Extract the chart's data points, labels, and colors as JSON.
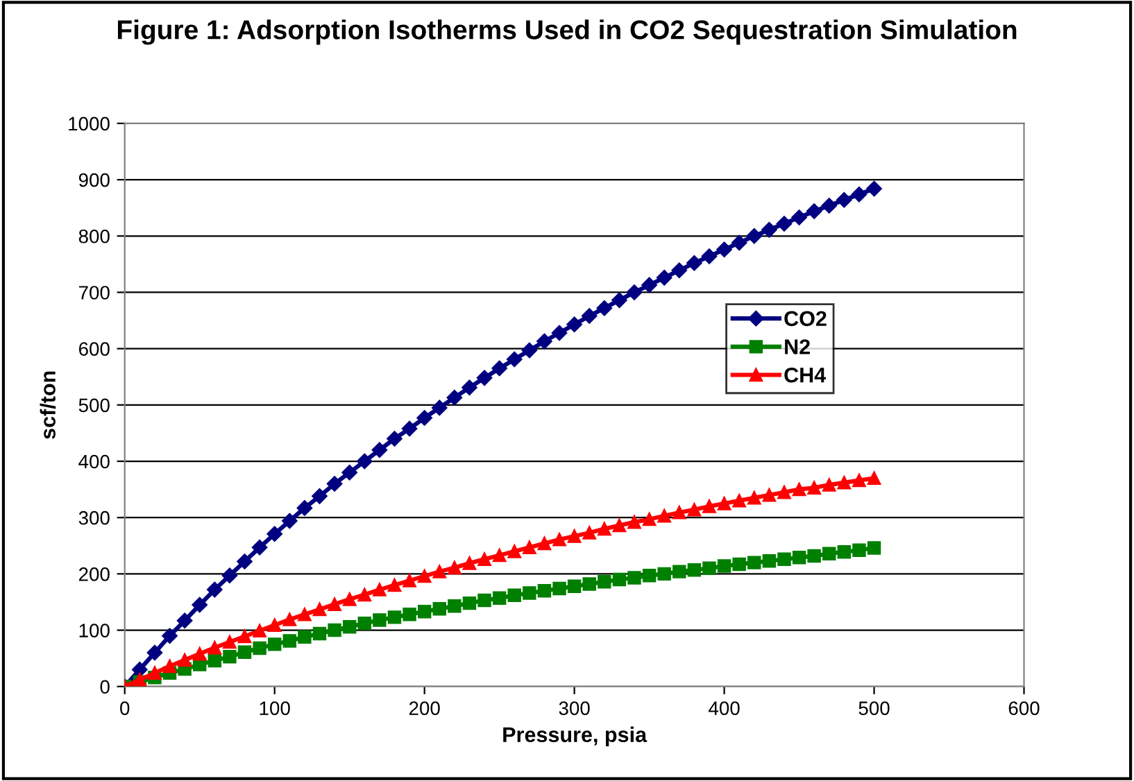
{
  "chart_data": {
    "type": "line",
    "title": "Figure 1: Adsorption Isotherms Used in CO2 Sequestration Simulation",
    "xlabel": "Pressure, psia",
    "ylabel": "scf/ton",
    "x": [
      0,
      10,
      20,
      30,
      40,
      50,
      60,
      70,
      80,
      90,
      100,
      110,
      120,
      130,
      140,
      150,
      160,
      170,
      180,
      190,
      200,
      210,
      220,
      230,
      240,
      250,
      260,
      270,
      280,
      290,
      300,
      310,
      320,
      330,
      340,
      350,
      360,
      370,
      380,
      390,
      400,
      410,
      420,
      430,
      440,
      450,
      460,
      470,
      480,
      490,
      500
    ],
    "series": [
      {
        "name": "CO2",
        "color": "#000080",
        "marker": "diamond",
        "values": [
          0,
          30,
          60,
          90,
          117,
          145,
          172,
          197,
          222,
          247,
          271,
          294,
          317,
          338,
          360,
          380,
          400,
          420,
          440,
          458,
          477,
          495,
          513,
          531,
          548,
          565,
          581,
          597,
          613,
          628,
          643,
          658,
          672,
          686,
          700,
          713,
          726,
          739,
          752,
          764,
          776,
          788,
          800,
          811,
          822,
          833,
          844,
          854,
          864,
          874,
          884
        ]
      },
      {
        "name": "N2",
        "color": "#008000",
        "marker": "square",
        "values": [
          0,
          8,
          16,
          24,
          31,
          39,
          46,
          53,
          61,
          68,
          75,
          81,
          88,
          94,
          100,
          106,
          112,
          118,
          123,
          128,
          133,
          138,
          143,
          148,
          153,
          157,
          162,
          166,
          170,
          174,
          178,
          182,
          186,
          190,
          193,
          197,
          200,
          204,
          207,
          210,
          214,
          217,
          220,
          223,
          226,
          229,
          232,
          236,
          239,
          242,
          246
        ]
      },
      {
        "name": "CH4",
        "color": "#ff0000",
        "marker": "triangle",
        "values": [
          0,
          12,
          24,
          36,
          47,
          58,
          69,
          79,
          89,
          99,
          109,
          119,
          128,
          137,
          146,
          155,
          163,
          172,
          180,
          188,
          196,
          204,
          211,
          219,
          226,
          233,
          240,
          247,
          254,
          261,
          267,
          273,
          280,
          286,
          292,
          297,
          303,
          309,
          314,
          320,
          325,
          330,
          335,
          340,
          345,
          350,
          353,
          358,
          362,
          366,
          370
        ]
      }
    ],
    "xlim": [
      0,
      600
    ],
    "xticks": [
      0,
      100,
      200,
      300,
      400,
      500,
      600
    ],
    "ylim": [
      0,
      1000
    ],
    "yticks": [
      0,
      100,
      200,
      300,
      400,
      500,
      600,
      700,
      800,
      900,
      1000
    ],
    "grid": "y",
    "legend": "right",
    "line_style": "solid"
  }
}
